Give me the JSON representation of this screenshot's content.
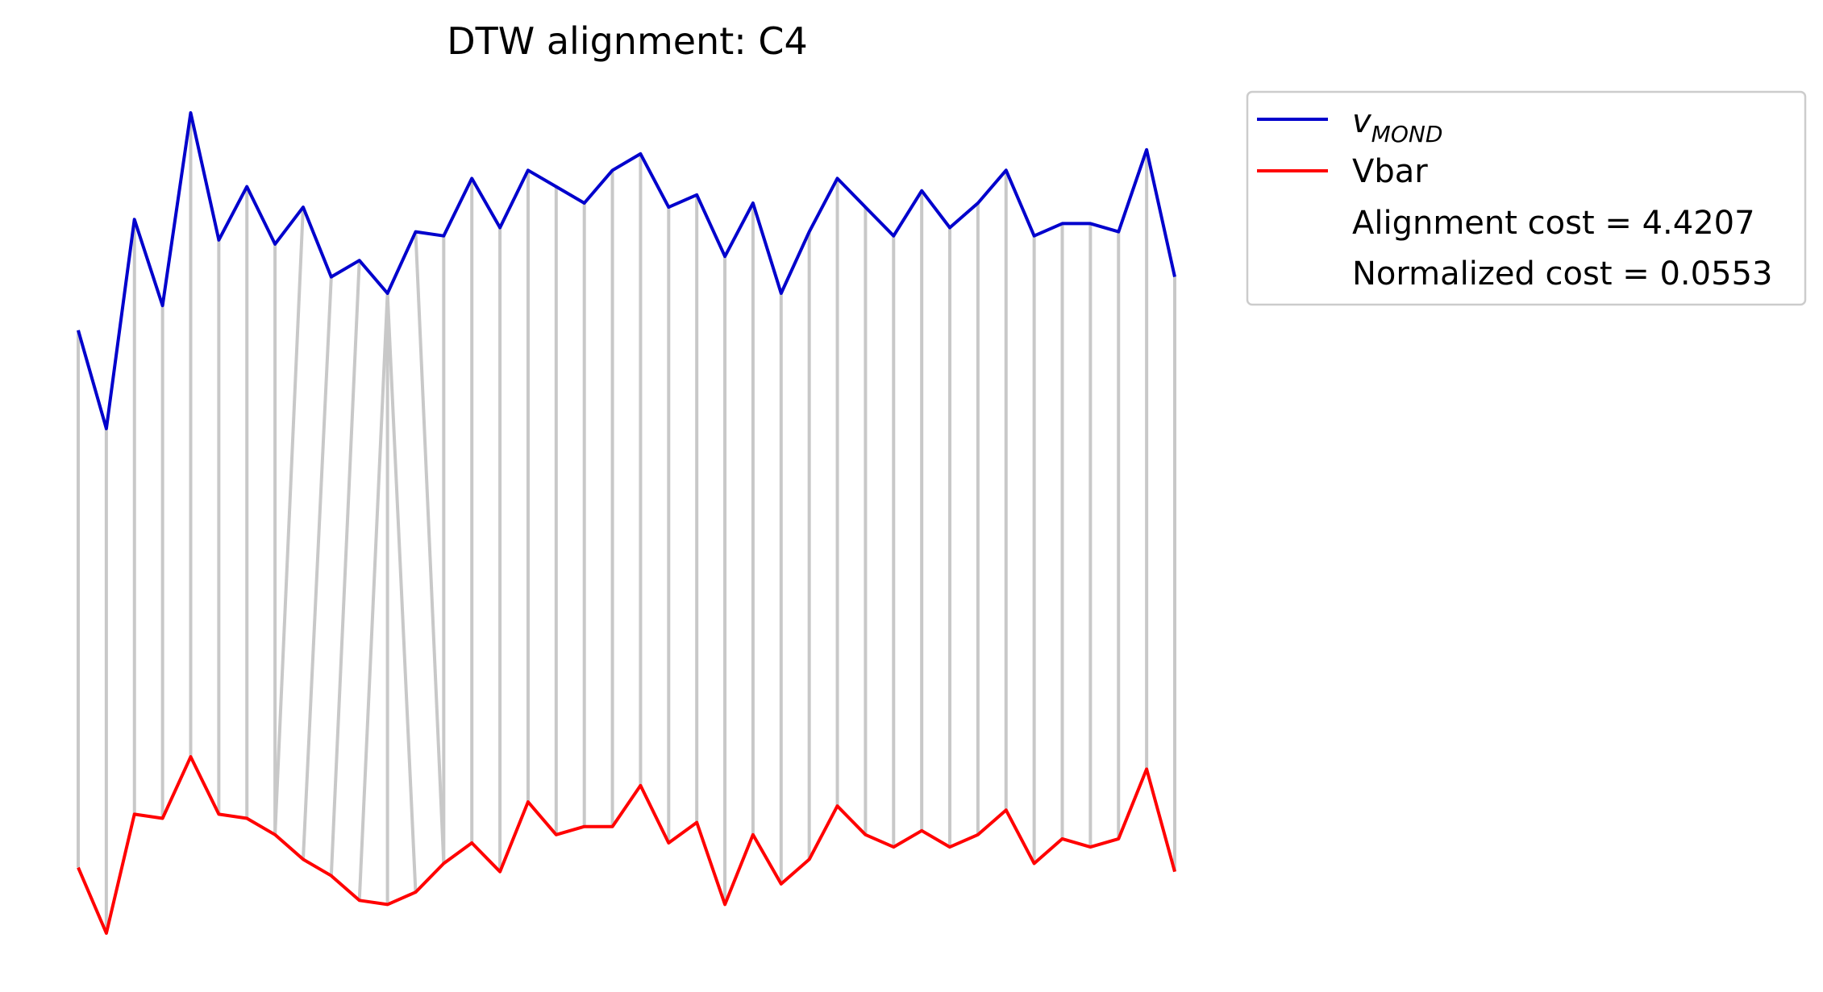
{
  "chart_data": {
    "type": "line",
    "title": "DTW alignment: C4",
    "xlabel": "",
    "ylabel": "",
    "axes_visible": false,
    "grid": false,
    "legend_position": "upper-right-outside",
    "x": [
      0,
      1,
      2,
      3,
      4,
      5,
      6,
      7,
      8,
      9,
      10,
      11,
      12,
      13,
      14,
      15,
      16,
      17,
      18,
      19,
      20,
      21,
      22,
      23,
      24,
      25,
      26,
      27,
      28,
      29,
      30,
      31,
      32,
      33,
      34,
      35,
      36,
      37,
      38,
      39
    ],
    "series": [
      {
        "name": "v",
        "name_subscript": "MOND",
        "color": "#0000cc",
        "values": [
          3.87,
          3.63,
          4.14,
          3.93,
          4.4,
          4.09,
          4.22,
          4.08,
          4.17,
          4.0,
          4.04,
          3.96,
          4.11,
          4.1,
          4.24,
          4.12,
          4.26,
          4.22,
          4.18,
          4.26,
          4.3,
          4.17,
          4.2,
          4.05,
          4.18,
          3.96,
          4.11,
          4.24,
          4.17,
          4.1,
          4.21,
          4.12,
          4.18,
          4.26,
          4.1,
          4.13,
          4.13,
          4.11,
          4.31,
          4.0
        ]
      },
      {
        "name": "Vbar",
        "color": "#ff0000",
        "values": [
          2.56,
          2.4,
          2.69,
          2.68,
          2.83,
          2.69,
          2.68,
          2.64,
          2.58,
          2.54,
          2.48,
          2.47,
          2.5,
          2.57,
          2.62,
          2.55,
          2.72,
          2.64,
          2.66,
          2.66,
          2.76,
          2.62,
          2.67,
          2.47,
          2.64,
          2.52,
          2.58,
          2.71,
          2.64,
          2.61,
          2.65,
          2.61,
          2.64,
          2.7,
          2.57,
          2.63,
          2.61,
          2.63,
          2.8,
          2.55
        ]
      }
    ],
    "alignment": {
      "color": "#c8c8c8",
      "pairs": [
        [
          0,
          0
        ],
        [
          1,
          1
        ],
        [
          2,
          2
        ],
        [
          3,
          3
        ],
        [
          4,
          4
        ],
        [
          5,
          5
        ],
        [
          6,
          6
        ],
        [
          7,
          7
        ],
        [
          8,
          7
        ],
        [
          9,
          8
        ],
        [
          10,
          9
        ],
        [
          11,
          10
        ],
        [
          11,
          11
        ],
        [
          11,
          12
        ],
        [
          12,
          13
        ],
        [
          13,
          13
        ],
        [
          14,
          14
        ],
        [
          15,
          15
        ],
        [
          16,
          16
        ],
        [
          17,
          17
        ],
        [
          18,
          18
        ],
        [
          19,
          19
        ],
        [
          20,
          20
        ],
        [
          21,
          21
        ],
        [
          22,
          22
        ],
        [
          23,
          23
        ],
        [
          24,
          24
        ],
        [
          25,
          25
        ],
        [
          26,
          26
        ],
        [
          27,
          27
        ],
        [
          28,
          28
        ],
        [
          29,
          29
        ],
        [
          30,
          30
        ],
        [
          31,
          31
        ],
        [
          32,
          32
        ],
        [
          33,
          33
        ],
        [
          34,
          34
        ],
        [
          35,
          35
        ],
        [
          36,
          36
        ],
        [
          37,
          37
        ],
        [
          38,
          38
        ],
        [
          39,
          39
        ]
      ]
    },
    "annotations": [
      "Alignment cost = 4.4207",
      "Normalized cost = 0.0553"
    ]
  }
}
